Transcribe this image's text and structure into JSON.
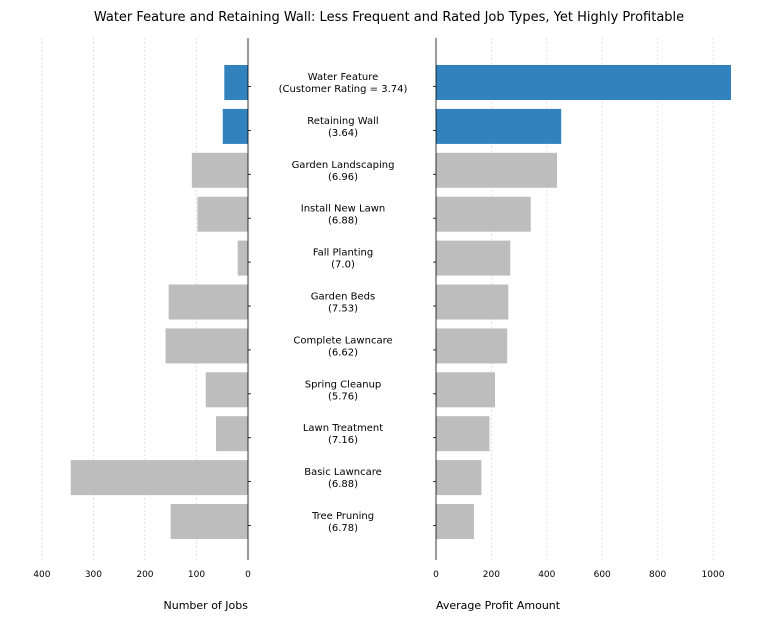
{
  "chart_data": {
    "type": "bar",
    "title": "Water Feature and Retaining Wall: Less Frequent and Rated Job Types, Yet Highly Profitable",
    "highlight_color": "#3182bd",
    "base_color": "#bdbdbd",
    "categories": [
      "Water Feature",
      "Retaining Wall",
      "Garden Landscaping",
      "Install New Lawn",
      "Fall Planting",
      "Garden Beds",
      "Complete Lawncare",
      "Spring Cleanup",
      "Lawn Treatment",
      "Basic Lawncare",
      "Tree Pruning"
    ],
    "category_labels": [
      [
        "Water Feature",
        "(Customer Rating = 3.74)"
      ],
      [
        "Retaining Wall",
        "(3.64)"
      ],
      [
        "Garden Landscaping",
        "(6.96)"
      ],
      [
        "Install New Lawn",
        "(6.88)"
      ],
      [
        "Fall Planting",
        "(7.0)"
      ],
      [
        "Garden Beds",
        "(7.53)"
      ],
      [
        "Complete Lawncare",
        "(6.62)"
      ],
      [
        "Spring Cleanup",
        "(5.76)"
      ],
      [
        "Lawn Treatment",
        "(7.16)"
      ],
      [
        "Basic Lawncare",
        "(6.88)"
      ],
      [
        "Tree Pruning",
        "(6.78)"
      ]
    ],
    "highlighted": [
      true,
      true,
      false,
      false,
      false,
      false,
      false,
      false,
      false,
      false,
      false
    ],
    "panels": [
      {
        "name": "left",
        "xlabel": "Number of Jobs",
        "xlim": [
          400,
          0
        ],
        "ticks": [
          400,
          300,
          200,
          100,
          0
        ],
        "tick_labels": [
          "400",
          "300",
          "200",
          "100",
          "0"
        ],
        "inverted": true,
        "values": [
          46,
          49,
          109,
          98,
          20,
          154,
          160,
          82,
          62,
          344,
          150
        ]
      },
      {
        "name": "right",
        "xlabel": "Average Profit Amount",
        "xlim": [
          0,
          1065
        ],
        "ticks": [
          0,
          200,
          400,
          600,
          800,
          1000
        ],
        "tick_labels": [
          "0",
          "200",
          "400",
          "600",
          "800",
          "1000"
        ],
        "inverted": false,
        "values": [
          1065,
          452,
          437,
          342,
          268,
          261,
          257,
          213,
          193,
          164,
          137
        ]
      }
    ],
    "grid": true
  }
}
